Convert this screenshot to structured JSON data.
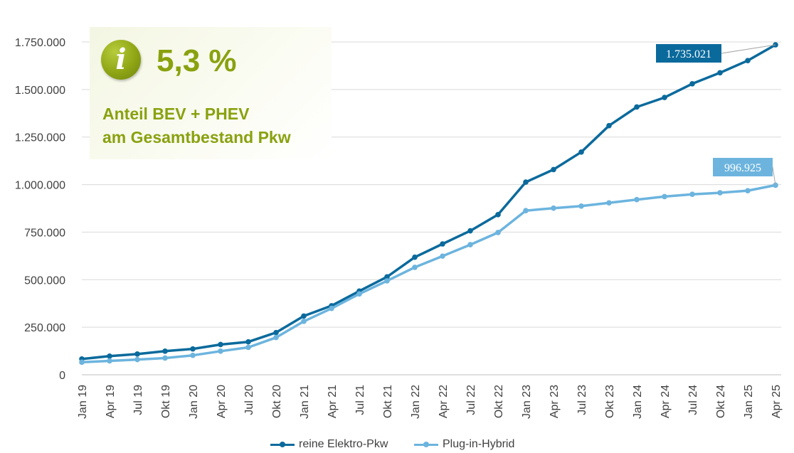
{
  "chart_data": {
    "type": "line",
    "categories": [
      "Jan 19",
      "Apr 19",
      "Jul 19",
      "Okt 19",
      "Jan 20",
      "Apr 20",
      "Jul 20",
      "Okt 20",
      "Jan 21",
      "Apr 21",
      "Jul 21",
      "Okt 21",
      "Jan 22",
      "Apr 22",
      "Jul 22",
      "Okt 22",
      "Jan 23",
      "Apr 23",
      "Jul 23",
      "Okt 23",
      "Jan 24",
      "Apr 24",
      "Jul 24",
      "Okt 24",
      "Jan 25",
      "Apr 25"
    ],
    "series": [
      {
        "name": "reine Elektro-Pkw",
        "color": "#0b6a9c",
        "values": [
          83000,
          98000,
          109000,
          124000,
          136000,
          159000,
          173000,
          222000,
          309000,
          363000,
          440000,
          515000,
          618000,
          688000,
          757000,
          842000,
          1013000,
          1079000,
          1171000,
          1310000,
          1408000,
          1458000,
          1530000,
          1588000,
          1652000,
          1735021
        ]
      },
      {
        "name": "Plug-in-Hybrid",
        "color": "#6cb4de",
        "values": [
          66000,
          73000,
          80000,
          88000,
          102000,
          124000,
          144000,
          196000,
          281000,
          349000,
          425000,
          494000,
          565000,
          624000,
          684000,
          748000,
          863000,
          876000,
          887000,
          904000,
          921000,
          937000,
          949000,
          957000,
          968000,
          996925
        ]
      }
    ],
    "ylim": [
      0,
      1750000
    ],
    "yticks": [
      0,
      250000,
      500000,
      750000,
      1000000,
      1250000,
      1500000,
      1750000
    ],
    "ytick_labels": [
      "0",
      "250.000",
      "500.000",
      "750.000",
      "1.000.000",
      "1.250.000",
      "1.500.000",
      "1.750.000"
    ],
    "grid": true,
    "legend_position": "bottom",
    "annotations": [
      {
        "series": 0,
        "index": 25,
        "text": "1.735.021",
        "color": "#0b6a9c"
      },
      {
        "series": 1,
        "index": 25,
        "text": "996.925",
        "color": "#6cb4de"
      }
    ]
  },
  "info_box": {
    "icon": "info-icon",
    "icon_glyph": "i",
    "value": "5,3 %",
    "line1": "Anteil BEV + PHEV",
    "line2": "am Gesamtbestand Pkw",
    "color": "#8aa10f"
  }
}
